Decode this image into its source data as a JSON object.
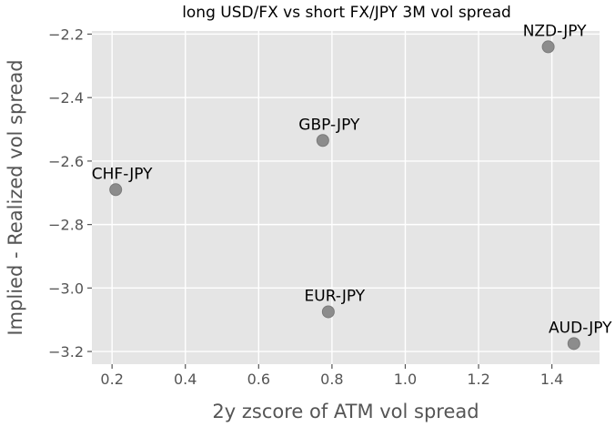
{
  "chart_data": {
    "type": "scatter",
    "title": "long USD/FX vs short FX/JPY 3M vol spread",
    "xlabel": "2y zscore of ATM vol spread",
    "ylabel": "Implied - Realized vol spread",
    "xlim": [
      0.145,
      1.53
    ],
    "ylim": [
      -3.24,
      -2.19
    ],
    "xticks": [
      0.2,
      0.4,
      0.6,
      0.8,
      1.0,
      1.2,
      1.4
    ],
    "xtick_labels": [
      "0.2",
      "0.4",
      "0.6",
      "0.8",
      "1.0",
      "1.2",
      "1.4"
    ],
    "yticks": [
      -2.2,
      -2.4,
      -2.6,
      -2.8,
      -3.0,
      -3.2
    ],
    "ytick_labels": [
      "−2.2",
      "−2.4",
      "−2.6",
      "−2.8",
      "−3.0",
      "−3.2"
    ],
    "grid": true,
    "points": [
      {
        "label": "NZD-JPY",
        "x": 1.39,
        "y": -2.24
      },
      {
        "label": "GBP-JPY",
        "x": 0.775,
        "y": -2.535
      },
      {
        "label": "CHF-JPY",
        "x": 0.21,
        "y": -2.69
      },
      {
        "label": "EUR-JPY",
        "x": 0.79,
        "y": -3.075
      },
      {
        "label": "AUD-JPY",
        "x": 1.46,
        "y": -3.175
      }
    ],
    "colors": {
      "plot_background": "#e5e5e5",
      "grid": "#ffffff",
      "point": "#8c8c8c",
      "point_edge": "#7a7a7a"
    }
  }
}
